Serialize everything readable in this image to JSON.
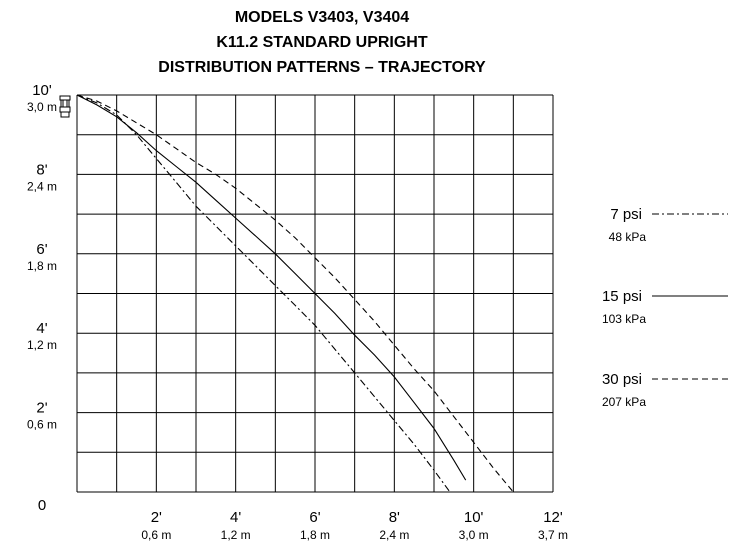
{
  "chart_data": {
    "type": "line",
    "title_lines": [
      "MODELS V3403, V3404",
      "K11.2 STANDARD UPRIGHT",
      "DISTRIBUTION PATTERNS – TRAJECTORY"
    ],
    "xlim": [
      0,
      12
    ],
    "ylim": [
      0,
      10
    ],
    "grid": true,
    "x_ticks": [
      {
        "value": 2,
        "label": "2'",
        "sublabel": "0,6 m"
      },
      {
        "value": 4,
        "label": "4'",
        "sublabel": "1,2 m"
      },
      {
        "value": 6,
        "label": "6'",
        "sublabel": "1,8 m"
      },
      {
        "value": 8,
        "label": "8'",
        "sublabel": "2,4 m"
      },
      {
        "value": 10,
        "label": "10'",
        "sublabel": "3,0 m"
      },
      {
        "value": 12,
        "label": "12'",
        "sublabel": "3,7 m"
      }
    ],
    "y_ticks": [
      {
        "value": 10,
        "label": "10'",
        "sublabel": "3,0 m"
      },
      {
        "value": 8,
        "label": "8'",
        "sublabel": "2,4 m"
      },
      {
        "value": 6,
        "label": "6'",
        "sublabel": "1,8 m"
      },
      {
        "value": 4,
        "label": "4'",
        "sublabel": "1,2 m"
      },
      {
        "value": 2,
        "label": "2'",
        "sublabel": "0,6 m"
      },
      {
        "value": 0,
        "label": "0",
        "sublabel": ""
      }
    ],
    "series": [
      {
        "name": "7 psi",
        "subname": "48 kPa",
        "dash": "dash-dot",
        "color": "#000000",
        "x": [
          0,
          0.5,
          1,
          1.5,
          2,
          2.5,
          3,
          3.5,
          4,
          4.5,
          5,
          5.5,
          6,
          6.5,
          7,
          7.5,
          8,
          8.5,
          9,
          9.4
        ],
        "y": [
          10,
          9.8,
          9.5,
          9.0,
          8.4,
          7.8,
          7.2,
          6.7,
          6.2,
          5.7,
          5.2,
          4.7,
          4.2,
          3.6,
          3.0,
          2.4,
          1.8,
          1.2,
          0.55,
          0
        ]
      },
      {
        "name": "15 psi",
        "subname": "103 kPa",
        "dash": "solid",
        "color": "#000000",
        "x": [
          0,
          0.5,
          1,
          1.5,
          2,
          2.5,
          3,
          3.5,
          4,
          4.5,
          5,
          5.5,
          6,
          6.5,
          7,
          7.5,
          8,
          8.5,
          9,
          9.5,
          9.8
        ],
        "y": [
          10,
          9.75,
          9.45,
          9.05,
          8.6,
          8.2,
          7.8,
          7.35,
          6.9,
          6.45,
          6.0,
          5.5,
          5.0,
          4.5,
          3.95,
          3.45,
          2.9,
          2.25,
          1.6,
          0.8,
          0.3
        ]
      },
      {
        "name": "30 psi",
        "subname": "207 kPa",
        "dash": "dashed",
        "color": "#000000",
        "x": [
          0,
          0.5,
          1,
          1.5,
          2,
          2.5,
          3,
          3.5,
          4,
          4.5,
          5,
          5.5,
          6,
          6.5,
          7,
          7.5,
          8,
          8.5,
          9,
          9.5,
          10,
          10.5,
          11
        ],
        "y": [
          10,
          9.85,
          9.6,
          9.3,
          9.0,
          8.65,
          8.3,
          8.0,
          7.65,
          7.25,
          6.85,
          6.4,
          5.9,
          5.4,
          4.85,
          4.3,
          3.7,
          3.1,
          2.55,
          1.9,
          1.25,
          0.6,
          0
        ]
      }
    ]
  }
}
